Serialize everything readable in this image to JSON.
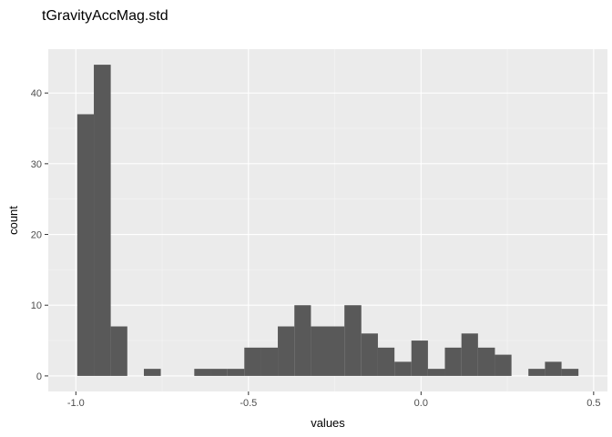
{
  "chart_data": {
    "type": "bar",
    "title": "tGravityAccMag.std",
    "xlabel": "values",
    "ylabel": "count",
    "xlim": [
      -1.08,
      0.54
    ],
    "ylim": [
      -2.2,
      46.2
    ],
    "x_ticks": [
      -1.0,
      -0.5,
      0.0,
      0.5
    ],
    "x_tick_labels": [
      "-1.0",
      "-0.5",
      "0.0",
      "0.5"
    ],
    "y_ticks": [
      0,
      10,
      20,
      30,
      40
    ],
    "y_tick_labels": [
      "0",
      "10",
      "20",
      "30",
      "40"
    ],
    "grid": true,
    "bin_width": 0.0484,
    "bars": [
      {
        "x0": -0.996,
        "x1": -0.948,
        "count": 37
      },
      {
        "x0": -0.948,
        "x1": -0.899,
        "count": 44
      },
      {
        "x0": -0.899,
        "x1": -0.851,
        "count": 7
      },
      {
        "x0": -0.851,
        "x1": -0.803,
        "count": 0
      },
      {
        "x0": -0.803,
        "x1": -0.754,
        "count": 1
      },
      {
        "x0": -0.754,
        "x1": -0.706,
        "count": 0
      },
      {
        "x0": -0.706,
        "x1": -0.657,
        "count": 0
      },
      {
        "x0": -0.657,
        "x1": -0.609,
        "count": 1
      },
      {
        "x0": -0.609,
        "x1": -0.561,
        "count": 1
      },
      {
        "x0": -0.561,
        "x1": -0.512,
        "count": 1
      },
      {
        "x0": -0.512,
        "x1": -0.464,
        "count": 4
      },
      {
        "x0": -0.464,
        "x1": -0.415,
        "count": 4
      },
      {
        "x0": -0.415,
        "x1": -0.367,
        "count": 7
      },
      {
        "x0": -0.367,
        "x1": -0.319,
        "count": 10
      },
      {
        "x0": -0.319,
        "x1": -0.27,
        "count": 7
      },
      {
        "x0": -0.27,
        "x1": -0.222,
        "count": 7
      },
      {
        "x0": -0.222,
        "x1": -0.173,
        "count": 10
      },
      {
        "x0": -0.173,
        "x1": -0.125,
        "count": 6
      },
      {
        "x0": -0.125,
        "x1": -0.077,
        "count": 4
      },
      {
        "x0": -0.077,
        "x1": -0.028,
        "count": 2
      },
      {
        "x0": -0.028,
        "x1": 0.02,
        "count": 5
      },
      {
        "x0": 0.02,
        "x1": 0.069,
        "count": 1
      },
      {
        "x0": 0.069,
        "x1": 0.117,
        "count": 4
      },
      {
        "x0": 0.117,
        "x1": 0.165,
        "count": 6
      },
      {
        "x0": 0.165,
        "x1": 0.214,
        "count": 4
      },
      {
        "x0": 0.214,
        "x1": 0.262,
        "count": 3
      },
      {
        "x0": 0.262,
        "x1": 0.311,
        "count": 0
      },
      {
        "x0": 0.311,
        "x1": 0.359,
        "count": 1
      },
      {
        "x0": 0.359,
        "x1": 0.407,
        "count": 2
      },
      {
        "x0": 0.407,
        "x1": 0.456,
        "count": 1
      }
    ],
    "colors": {
      "bar_fill": "#595959",
      "panel_background": "#ebebeb",
      "grid_major": "#ffffff",
      "grid_minor": "#f5f5f5",
      "tick_text": "#4d4d4d",
      "tick_mark": "#333333"
    }
  }
}
